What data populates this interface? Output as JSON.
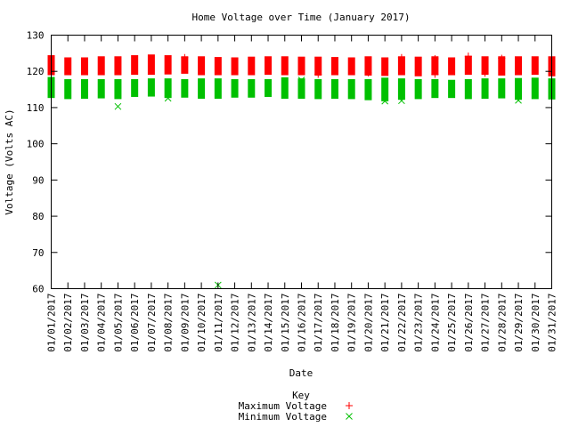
{
  "chart_data": {
    "type": "scatter",
    "title": "Home Voltage over Time (January 2017)",
    "xlabel": "Date",
    "ylabel": "Voltage (Volts AC)",
    "ylim": [
      60,
      130
    ],
    "yticks": [
      60,
      70,
      80,
      90,
      100,
      110,
      120,
      130
    ],
    "grid": false,
    "legend_title": "Key",
    "legend_position": "bottom-center",
    "categories": [
      "01/01/2017",
      "01/02/2017",
      "01/03/2017",
      "01/04/2017",
      "01/05/2017",
      "01/06/2017",
      "01/07/2017",
      "01/08/2017",
      "01/09/2017",
      "01/10/2017",
      "01/11/2017",
      "01/12/2017",
      "01/13/2017",
      "01/14/2017",
      "01/15/2017",
      "01/16/2017",
      "01/17/2017",
      "01/18/2017",
      "01/19/2017",
      "01/20/2017",
      "01/21/2017",
      "01/22/2017",
      "01/23/2017",
      "01/24/2017",
      "01/25/2017",
      "01/26/2017",
      "01/27/2017",
      "01/28/2017",
      "01/29/2017",
      "01/30/2017",
      "01/31/2017"
    ],
    "series": [
      {
        "name": "Maximum Voltage",
        "marker": "+",
        "color": "#ff0000",
        "band_low": [
          119.8,
          119.8,
          119.8,
          119.8,
          119.8,
          119.9,
          119.9,
          120.0,
          120.2,
          119.8,
          119.8,
          119.8,
          119.8,
          119.9,
          119.8,
          119.8,
          119.7,
          119.8,
          119.8,
          119.7,
          119.6,
          119.8,
          119.5,
          119.8,
          119.8,
          119.9,
          119.9,
          119.7,
          119.8,
          119.9,
          119.5
        ],
        "band_high": [
          123.6,
          123.0,
          123.0,
          123.3,
          123.3,
          123.6,
          123.8,
          123.6,
          123.3,
          123.3,
          123.1,
          123.0,
          123.2,
          123.3,
          123.3,
          123.2,
          123.2,
          123.1,
          123.0,
          123.3,
          123.0,
          123.3,
          123.2,
          123.3,
          123.0,
          123.4,
          123.3,
          123.3,
          123.3,
          123.3,
          123.3
        ],
        "outliers": [
          {
            "x": "01/09/2017",
            "y": 123.8
          },
          {
            "x": "01/17/2017",
            "y": 119.2
          },
          {
            "x": "01/20/2017",
            "y": 119.6
          },
          {
            "x": "01/22/2017",
            "y": 123.8
          },
          {
            "x": "01/24/2017",
            "y": 123.5
          },
          {
            "x": "01/24/2017",
            "y": 119.2
          },
          {
            "x": "01/26/2017",
            "y": 124.2
          },
          {
            "x": "01/27/2017",
            "y": 119.5
          },
          {
            "x": "01/28/2017",
            "y": 123.6
          },
          {
            "x": "01/31/2017",
            "y": 120.0
          }
        ]
      },
      {
        "name": "Minimum Voltage",
        "marker": "x",
        "color": "#00c000",
        "band_low": [
          113.5,
          113.2,
          113.3,
          113.4,
          113.2,
          113.8,
          113.9,
          113.5,
          113.6,
          113.3,
          113.3,
          113.6,
          113.6,
          113.8,
          113.3,
          113.3,
          113.2,
          113.3,
          113.2,
          112.9,
          112.6,
          113.0,
          113.2,
          113.5,
          113.5,
          113.2,
          113.3,
          113.4,
          113.0,
          113.2,
          113.1
        ],
        "band_high": [
          117.6,
          117.0,
          117.0,
          117.0,
          117.0,
          117.0,
          117.2,
          117.2,
          117.0,
          117.2,
          117.2,
          117.0,
          117.0,
          117.0,
          117.5,
          117.2,
          117.0,
          117.0,
          117.0,
          117.0,
          117.4,
          117.2,
          117.0,
          117.0,
          116.8,
          117.0,
          117.2,
          117.2,
          117.3,
          117.4,
          117.2
        ],
        "outliers": [
          {
            "x": "01/05/2017",
            "y": 110.3
          },
          {
            "x": "01/08/2017",
            "y": 112.6
          },
          {
            "x": "01/11/2017",
            "y": 61.0
          },
          {
            "x": "01/16/2017",
            "y": 117.6
          },
          {
            "x": "01/21/2017",
            "y": 111.8
          },
          {
            "x": "01/22/2017",
            "y": 111.9
          },
          {
            "x": "01/29/2017",
            "y": 112.0
          }
        ]
      }
    ]
  }
}
